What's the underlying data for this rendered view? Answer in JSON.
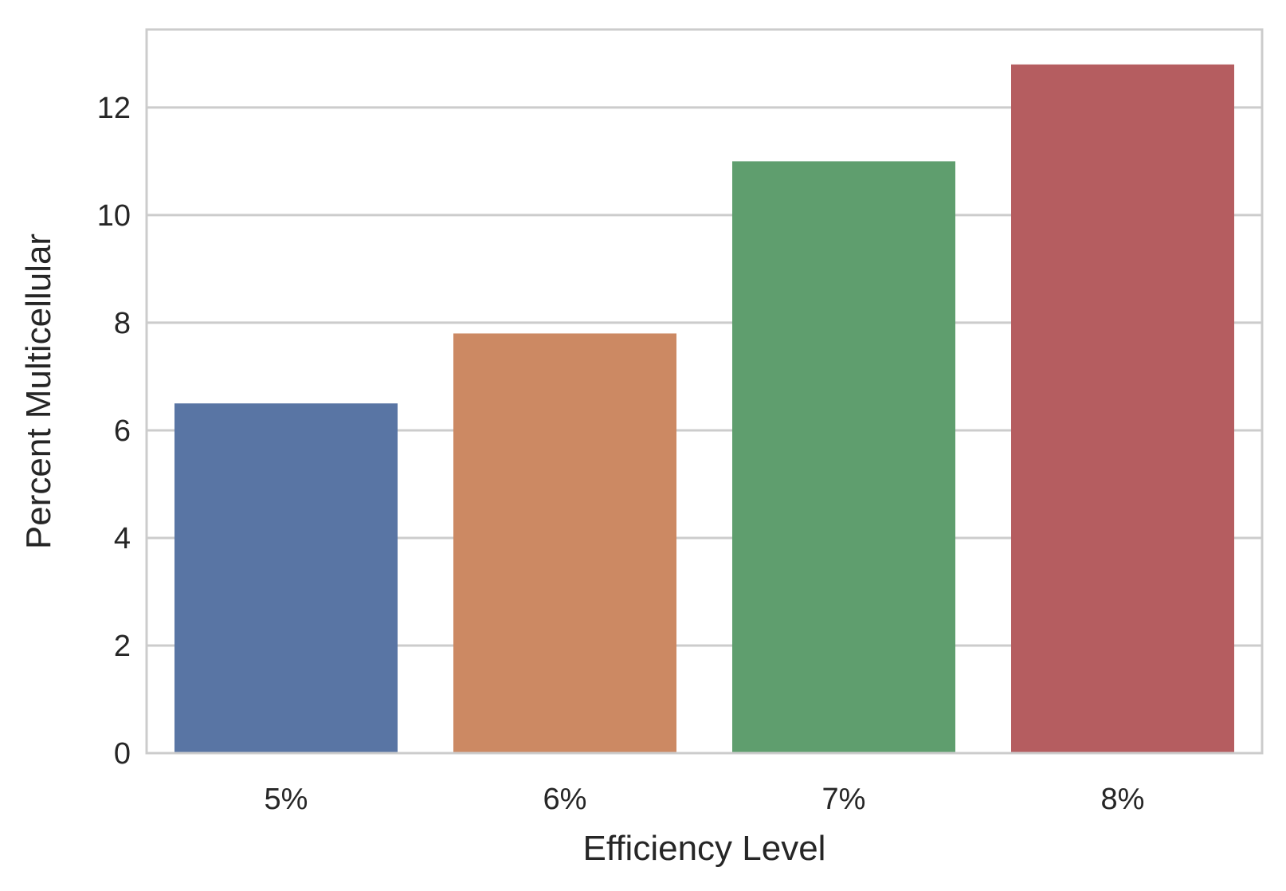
{
  "chart_data": {
    "type": "bar",
    "title": "",
    "xlabel": "Efficiency Level",
    "ylabel": "Percent Multicellular",
    "categories": [
      "5%",
      "6%",
      "7%",
      "8%"
    ],
    "values": [
      6.5,
      7.8,
      11.0,
      12.8
    ],
    "colors": [
      "#5975a4",
      "#cc8963",
      "#5f9e6e",
      "#b55d60"
    ],
    "ylim": [
      0,
      13.45
    ],
    "yticks": [
      0,
      2,
      4,
      6,
      8,
      10,
      12
    ],
    "grid": true,
    "grid_axis": "y",
    "legend": "none"
  }
}
